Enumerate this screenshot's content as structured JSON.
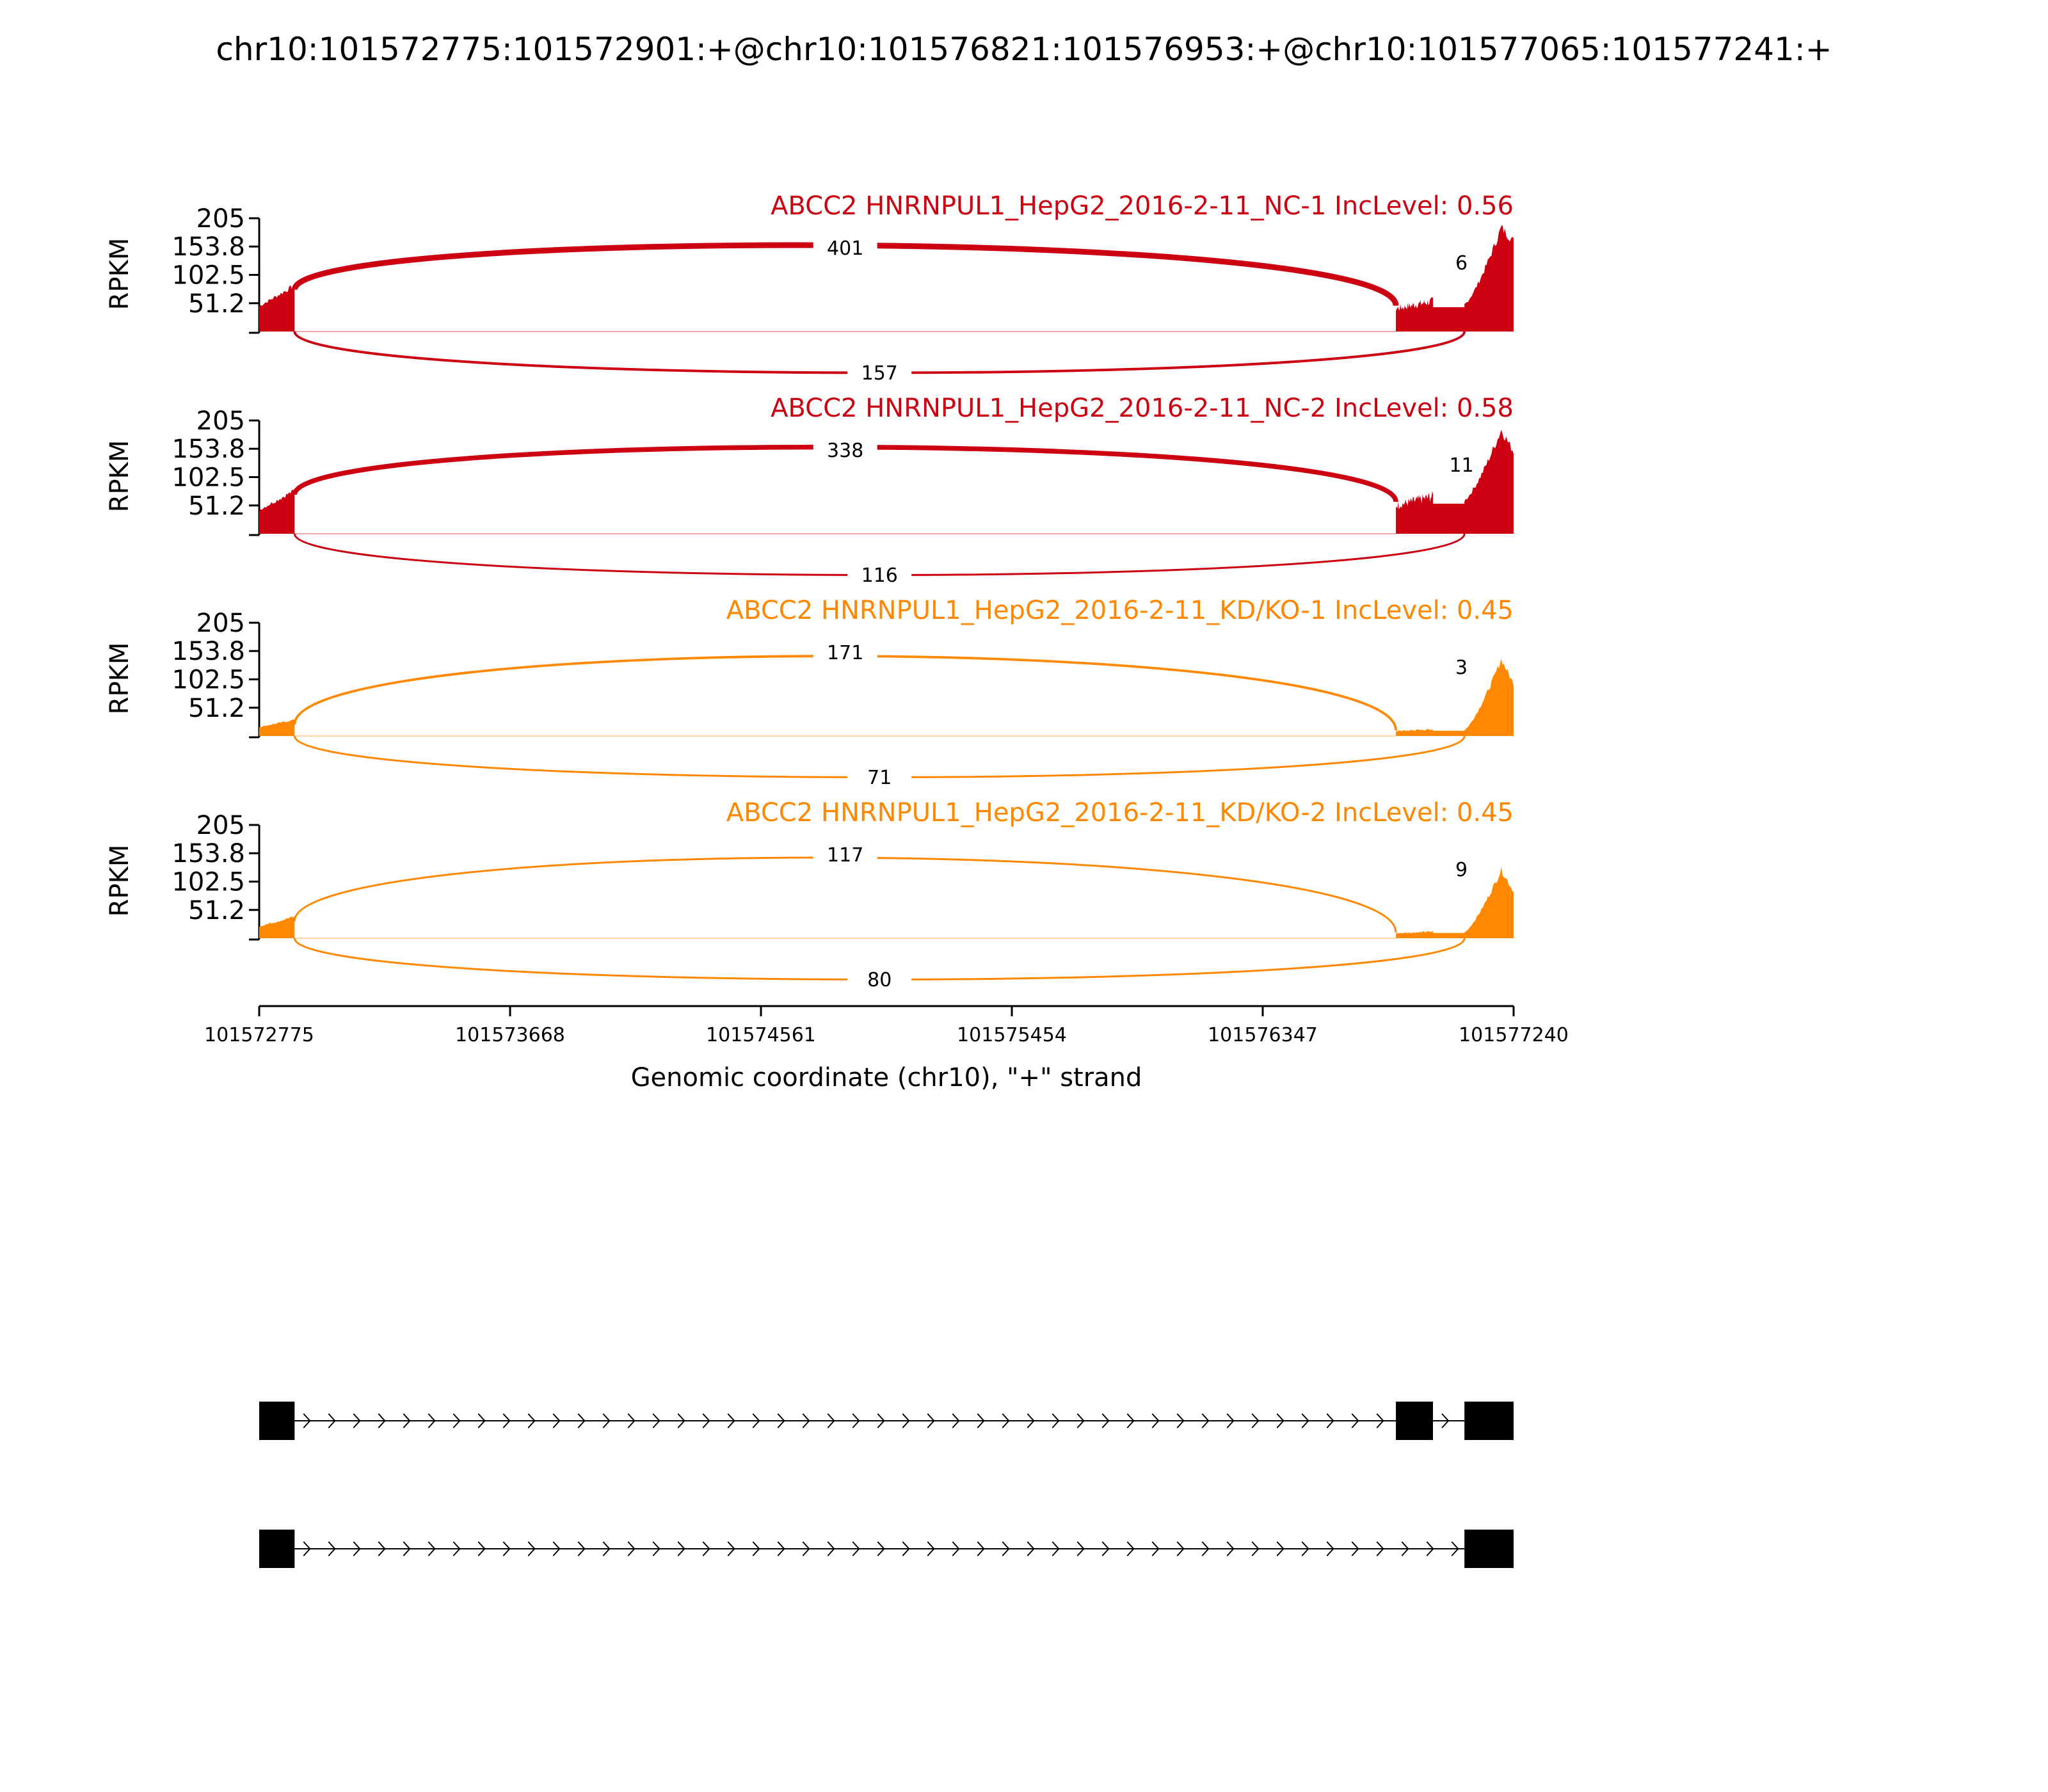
{
  "chart_data": {
    "type": "area",
    "title": "chr10:101572775:101572901:+@chr10:101576821:101576953:+@chr10:101577065:101577241:+",
    "xlabel": "Genomic coordinate (chr10), \"+\" strand",
    "ylabel": "RPKM",
    "xlim": [
      101572775,
      101577240
    ],
    "x_ticks": [
      "101572775",
      "101573668",
      "101574561",
      "101575454",
      "101576347",
      "101577240"
    ],
    "ylim": [
      0,
      205
    ],
    "y_ticks": [
      "205",
      "153.8",
      "102.5",
      "51.2"
    ],
    "exons": [
      {
        "start": 101572775,
        "end": 101572901
      },
      {
        "start": 101576821,
        "end": 101576953
      },
      {
        "start": 101577065,
        "end": 101577241
      }
    ],
    "panels": [
      {
        "title": "ABCC2 HNRNPUL1_HepG2_2016-2-11_NC-1 IncLevel: 0.56",
        "color": "#cc0011",
        "junctions": {
          "inclusion_upstream": "401",
          "inclusion_downstream": "6",
          "skipping": "157"
        },
        "coverage": {
          "exon1": 85,
          "exon2": 55,
          "exon3_peak": 190,
          "exon3_end": 165
        }
      },
      {
        "title": "ABCC2 HNRNPUL1_HepG2_2016-2-11_NC-2 IncLevel: 0.58",
        "color": "#cc0011",
        "junctions": {
          "inclusion_upstream": "338",
          "inclusion_downstream": "11",
          "skipping": "116"
        },
        "coverage": {
          "exon1": 80,
          "exon2": 68,
          "exon3_peak": 190,
          "exon3_end": 150
        }
      },
      {
        "title": "ABCC2 HNRNPUL1_HepG2_2016-2-11_KD/KO-1 IncLevel: 0.45",
        "color": "#ff8800",
        "junctions": {
          "inclusion_upstream": "171",
          "inclusion_downstream": "3",
          "skipping": "71"
        },
        "coverage": {
          "exon1": 30,
          "exon2": 12,
          "exon3_peak": 140,
          "exon3_end": 95
        }
      },
      {
        "title": "ABCC2 HNRNPUL1_HepG2_2016-2-11_KD/KO-2 IncLevel: 0.45",
        "color": "#ff8800",
        "junctions": {
          "inclusion_upstream": "117",
          "inclusion_downstream": "9",
          "skipping": "80"
        },
        "coverage": {
          "exon1": 40,
          "exon2": 12,
          "exon3_peak": 125,
          "exon3_end": 85
        }
      }
    ],
    "isoforms": [
      {
        "exons": [
          0,
          1,
          2
        ]
      },
      {
        "exons": [
          0,
          2
        ]
      }
    ]
  }
}
